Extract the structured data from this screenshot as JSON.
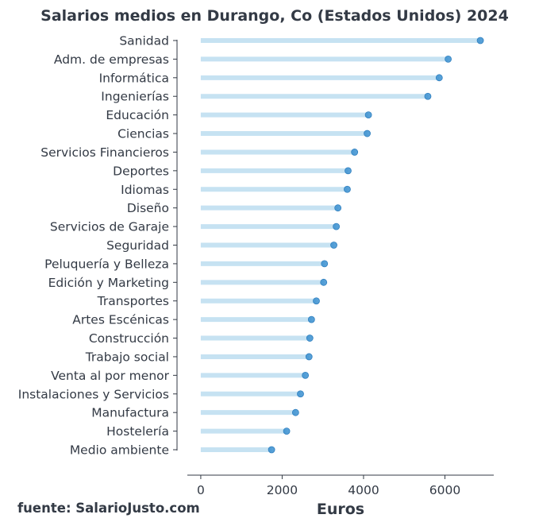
{
  "chart_data": {
    "type": "lollipop",
    "title": "Salarios medios en Durango, Co (Estados Unidos) 2024",
    "xlabel": "Euros",
    "ylabel": "",
    "source": "fuente: SalarioJusto.com",
    "xlim": [
      -330,
      7200
    ],
    "xticks": [
      0,
      2000,
      4000,
      6000
    ],
    "grid": false,
    "colors": {
      "stem": "#c6e2f2",
      "marker": "#3a8fd0",
      "axis": "#333a45"
    },
    "categories": [
      "Sanidad",
      "Adm. de empresas",
      "Informática",
      "Ingenierías",
      "Educación",
      "Ciencias",
      "Servicios Financieros",
      "Deportes",
      "Idiomas",
      "Diseño",
      "Servicios de Garaje",
      "Seguridad",
      "Peluquería y Belleza",
      "Edición y Marketing",
      "Transportes",
      "Artes Escénicas",
      "Construcción",
      "Trabajo social",
      "Venta al por menor",
      "Instalaciones y Servicios",
      "Manufactura",
      "Hostelería",
      "Medio ambiente"
    ],
    "values": [
      6870,
      6080,
      5860,
      5580,
      4120,
      4090,
      3780,
      3620,
      3600,
      3370,
      3330,
      3270,
      3040,
      3020,
      2840,
      2720,
      2680,
      2660,
      2570,
      2450,
      2330,
      2110,
      1740
    ]
  }
}
